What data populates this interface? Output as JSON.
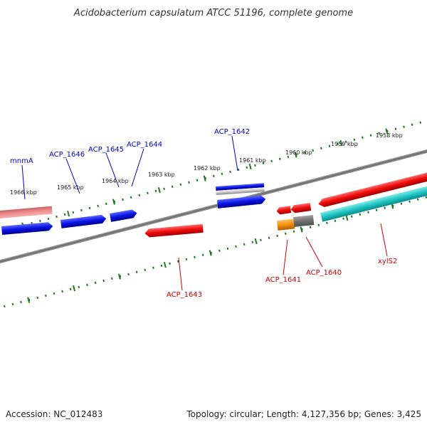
{
  "title": "Acidobacterium capsulatum ATCC 51196, complete genome",
  "footer": {
    "accession": "Accession: NC_012483",
    "summary": "Topology: circular; Length: 4,127,356 bp; Genes: 3,425"
  },
  "scale_labels": [
    "1966 kbp",
    "1965 kbp",
    "1964 kbp",
    "1963 kbp",
    "1962 kbp",
    "1961 kbp",
    "1960 kbp",
    "1959 kbp",
    "1958 kbp"
  ],
  "genes": [
    {
      "name": "mnmA",
      "strand": "forward"
    },
    {
      "name": "ACP_1646",
      "strand": "forward"
    },
    {
      "name": "ACP_1645",
      "strand": "forward"
    },
    {
      "name": "ACP_1644",
      "strand": "forward"
    },
    {
      "name": "ACP_1642",
      "strand": "forward"
    },
    {
      "name": "ACP_1643",
      "strand": "reverse"
    },
    {
      "name": "ACP_1641",
      "strand": "reverse"
    },
    {
      "name": "ACP_1640",
      "strand": "reverse"
    },
    {
      "name": "xylS2",
      "strand": "reverse"
    }
  ],
  "colors": {
    "forward_label": "#0000cc",
    "reverse_label": "#cc0000",
    "forward_gene": "#0a14e6",
    "reverse_gene": "#ee0a0a",
    "backbone": "#777777",
    "scale_tick": "#1a7a1a"
  }
}
